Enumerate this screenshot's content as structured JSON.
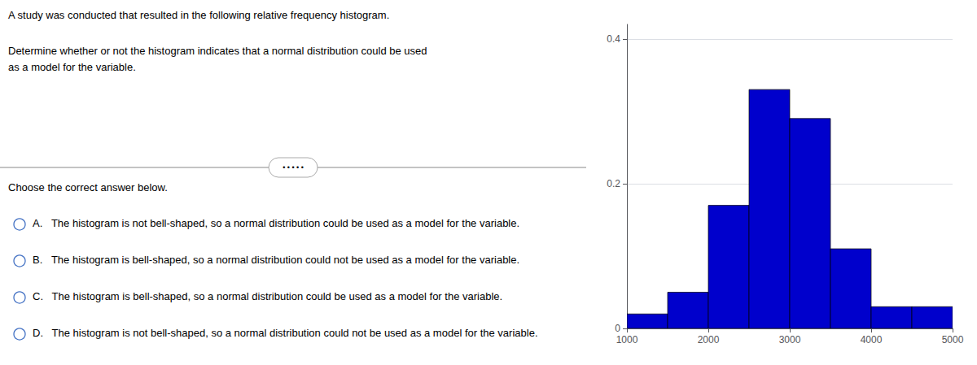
{
  "chart_data": {
    "type": "histogram",
    "bins": [
      1000,
      1500,
      2000,
      2500,
      3000,
      3500,
      4000,
      4500,
      5000
    ],
    "values": [
      0.02,
      0.05,
      0.17,
      0.33,
      0.29,
      0.11,
      0.03,
      0.03
    ],
    "color": "#0000cc",
    "xlim": [
      1000,
      5000
    ],
    "ylim": [
      0,
      0.42
    ],
    "xticks": [
      1000,
      2000,
      3000,
      4000,
      5000
    ],
    "yticks": [
      0,
      0.2,
      0.4
    ],
    "grid": true,
    "annotations": [
      "A study was conducted that resulted in the following relative frequency histogram.",
      "Determine whether or not the histogram indicates that a normal distribution could be used",
      "as a model for the variable.",
      "• • • • •",
      "Choose the correct answer below.",
      "A.   The histogram is not bell-shaped, so a normal distribution could be used as a model for the variable.",
      "B.   The histogram is bell-shaped, so a normal distribution could not be used as a model for the variable.",
      "C.   The histogram is bell-shaped, so a normal distribution could be used as a model for the variable.",
      "D.   The histogram is not bell-shaped, so a normal distribution could not be used as a model for the variable."
    ]
  }
}
